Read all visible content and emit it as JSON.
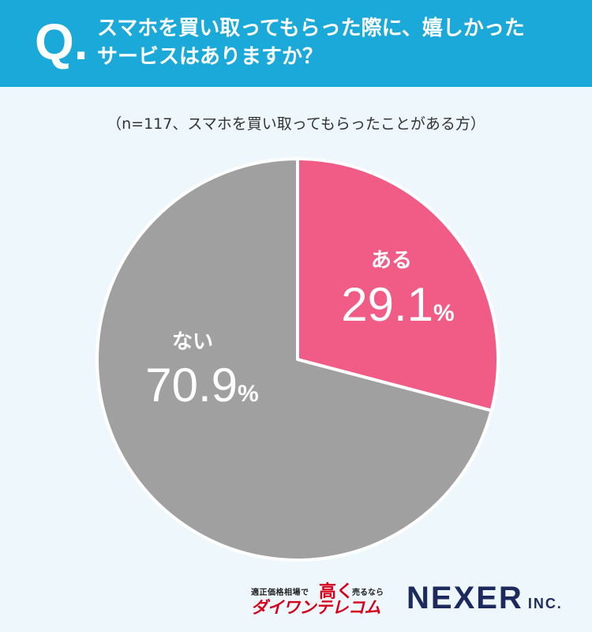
{
  "header": {
    "q_mark": "Q.",
    "question_line1": "スマホを買い取ってもらった際に、嬉しかった",
    "question_line2": "サービスはありますか？"
  },
  "subtitle": "（n=117、スマホを買い取ってもらったことがある方）",
  "colors": {
    "header_bg": "#1aa9d8",
    "page_bg": "#eef7fb",
    "slice_aru": "#f05c86",
    "slice_nai": "#a0a0a0"
  },
  "chart_data": {
    "type": "pie",
    "categories": [
      "ある",
      "ない"
    ],
    "values": [
      29.1,
      70.9
    ],
    "unit": "%",
    "title": "スマホを買い取ってもらった際に、嬉しかったサービスはありますか？",
    "colors": [
      "#f05c86",
      "#a0a0a0"
    ],
    "start": "12 o'clock",
    "direction": "clockwise"
  },
  "footer": {
    "daiwan_tagline_left": "適正価格相場で",
    "daiwan_tagline_big": "高く",
    "daiwan_tagline_right": "売るなら",
    "daiwan_name": "ダイワンテレコム",
    "nexer_name": "NEXER",
    "nexer_suffix": "INC."
  }
}
